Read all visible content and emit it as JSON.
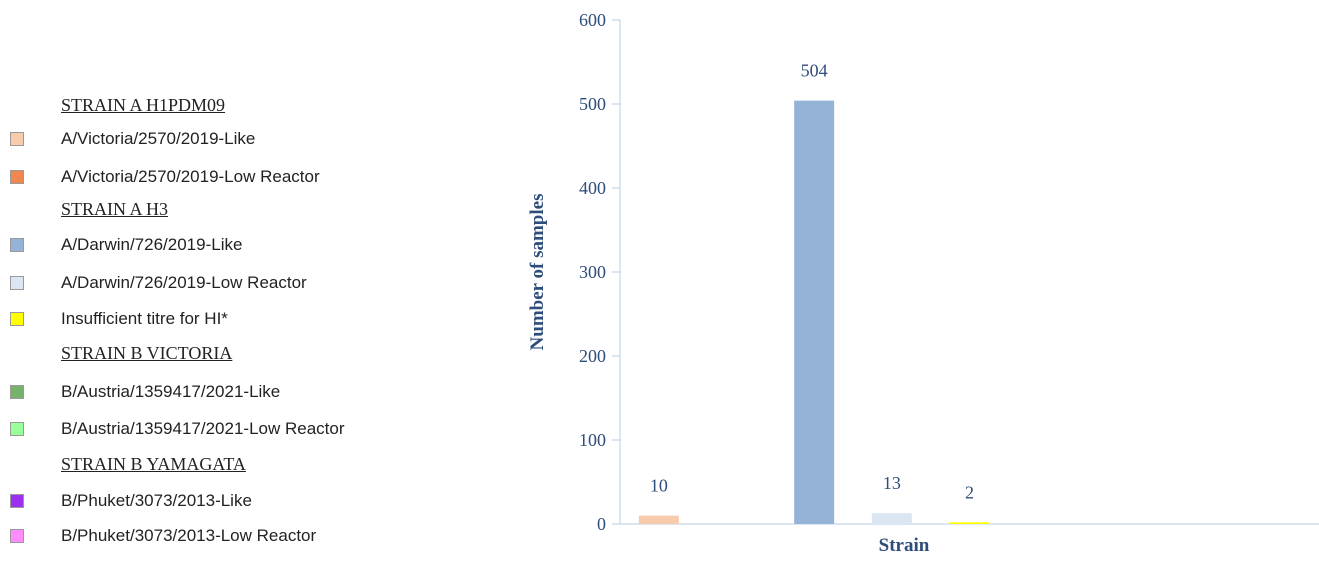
{
  "legend": {
    "groups": [
      {
        "heading": "STRAIN A H1PDM09",
        "items": [
          {
            "label": "A/Victoria/2570/2019-Like",
            "color": "#f8cbad"
          },
          {
            "label": "A/Victoria/2570/2019-Low Reactor",
            "color": "#f0874f"
          }
        ]
      },
      {
        "heading": "STRAIN A H3",
        "items": [
          {
            "label": "A/Darwin/726/2019-Like",
            "color": "#95b3d7"
          },
          {
            "label": "A/Darwin/726/2019-Low Reactor",
            "color": "#dce6f2"
          },
          {
            "label": "Insufficient titre for HI*",
            "color": "#ffff00"
          }
        ]
      },
      {
        "heading": "STRAIN B VICTORIA",
        "items": [
          {
            "label": "B/Austria/1359417/2021-Like",
            "color": "#77b26a"
          },
          {
            "label": "B/Austria/1359417/2021-Low Reactor",
            "color": "#99ff99"
          }
        ]
      },
      {
        "heading": "STRAIN B YAMAGATA",
        "items": [
          {
            "label": "B/Phuket/3073/2013-Like",
            "color": "#9b30f0"
          },
          {
            "label": "B/Phuket/3073/2013-Low Reactor",
            "color": "#ff8cff"
          }
        ]
      }
    ]
  },
  "chart_data": {
    "type": "bar",
    "title": "",
    "xlabel": "Strain",
    "ylabel": "Number of samples",
    "ylim": [
      0,
      600
    ],
    "yticks": [
      0,
      100,
      200,
      300,
      400,
      500,
      600
    ],
    "grid": false,
    "legend_position": "left",
    "categories": [
      "A/Victoria/2570/2019-Like",
      "A/Victoria/2570/2019-Low Reactor",
      "A/Darwin/726/2019-Like",
      "A/Darwin/726/2019-Low Reactor",
      "Insufficient titre for HI*",
      "B/Austria/1359417/2021-Like",
      "B/Austria/1359417/2021-Low Reactor",
      "B/Phuket/3073/2013-Like",
      "B/Phuket/3073/2013-Low Reactor"
    ],
    "values": [
      10,
      0,
      504,
      13,
      2,
      0,
      0,
      0,
      0
    ],
    "data_labels": [
      "10",
      "",
      "504",
      "13",
      "2",
      "",
      "",
      "",
      ""
    ],
    "colors": [
      "#f8cbad",
      "#f0874f",
      "#95b3d7",
      "#dce6f2",
      "#ffff00",
      "#77b26a",
      "#99ff99",
      "#9b30f0",
      "#ff8cff"
    ],
    "axis_color": "#2e4d7b",
    "axis_line_color": "#b9cde5"
  }
}
